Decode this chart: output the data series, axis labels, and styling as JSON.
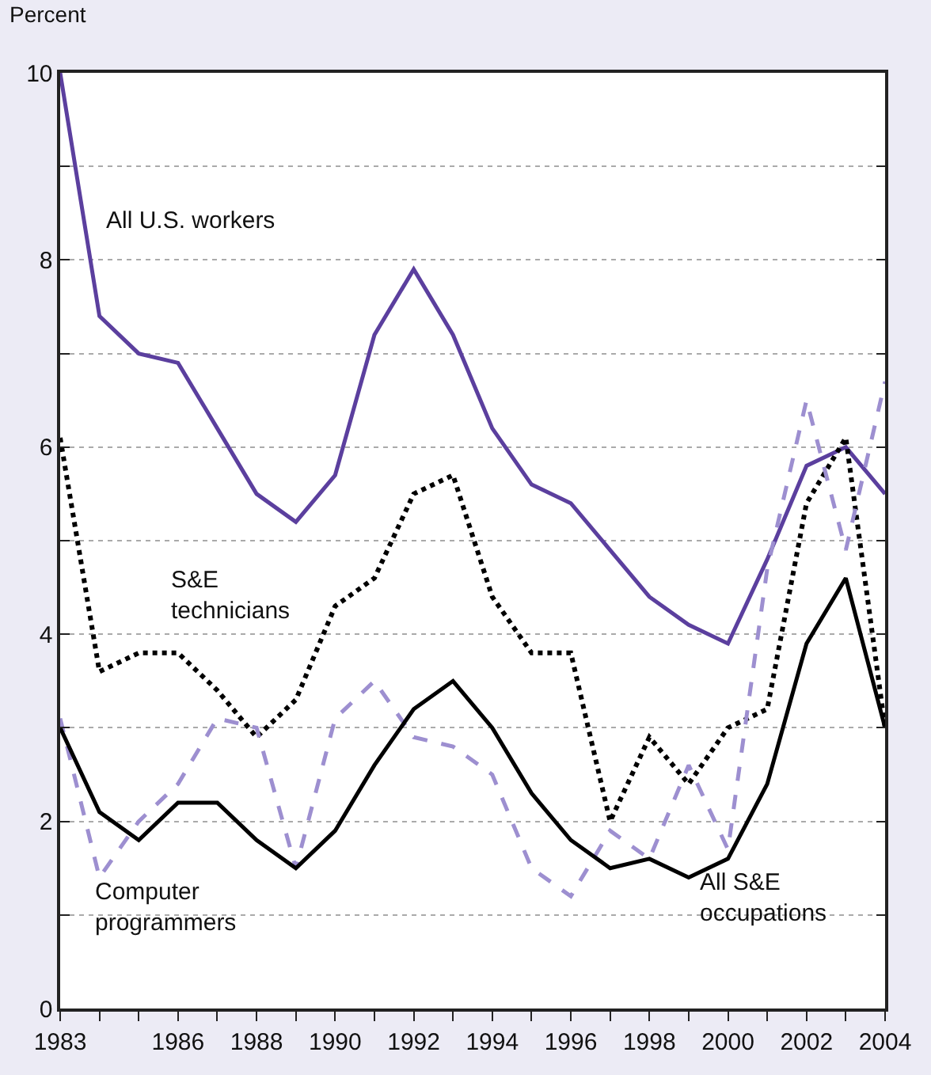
{
  "chart_data": {
    "type": "line",
    "ylabel": "Percent",
    "x": [
      1983,
      1984,
      1985,
      1986,
      1987,
      1988,
      1989,
      1990,
      1991,
      1992,
      1993,
      1994,
      1995,
      1996,
      1997,
      1998,
      1999,
      2000,
      2001,
      2002,
      2003,
      2004
    ],
    "series": [
      {
        "name": "All U.S. workers",
        "color": "#5b3f9e",
        "line_style": "solid",
        "values": [
          10,
          7.4,
          7.0,
          6.9,
          6.2,
          5.5,
          5.2,
          5.7,
          7.2,
          7.9,
          7.2,
          6.2,
          5.6,
          5.4,
          4.9,
          4.4,
          4.1,
          3.9,
          4.8,
          5.8,
          6.0,
          5.5
        ]
      },
      {
        "name": "S&E technicians",
        "color": "#000000",
        "line_style": "dotted",
        "values": [
          6.1,
          3.6,
          3.8,
          3.8,
          3.4,
          2.9,
          3.3,
          4.3,
          4.6,
          5.5,
          5.7,
          4.4,
          3.8,
          3.8,
          2.0,
          2.9,
          2.4,
          3.0,
          3.2,
          5.4,
          6.1,
          3.0
        ]
      },
      {
        "name": "Computer programmers",
        "color": "#9d8fd0",
        "line_style": "dashed",
        "values": [
          3.1,
          1.4,
          2.0,
          2.4,
          3.1,
          3.0,
          1.5,
          3.1,
          3.5,
          2.9,
          2.8,
          2.5,
          1.5,
          1.2,
          1.9,
          1.6,
          2.6,
          1.7,
          4.7,
          6.5,
          4.9,
          6.7
        ]
      },
      {
        "name": "All S&E occupations",
        "color": "#000000",
        "line_style": "solid",
        "values": [
          3.0,
          2.1,
          1.8,
          2.2,
          2.2,
          1.8,
          1.5,
          1.9,
          2.6,
          3.2,
          3.5,
          3.0,
          2.3,
          1.8,
          1.5,
          1.6,
          1.4,
          1.6,
          2.4,
          3.9,
          4.6,
          3.0
        ]
      }
    ],
    "xlim": [
      1983,
      2004
    ],
    "xticks": [
      1983,
      {
        "value": 1984,
        "label": null
      },
      {
        "value": 1985,
        "label": null
      },
      1986,
      {
        "value": 1987,
        "label": null
      },
      1988,
      {
        "value": 1989,
        "label": null
      },
      1990,
      {
        "value": 1991,
        "label": null
      },
      1992,
      {
        "value": 1993,
        "label": null
      },
      1994,
      {
        "value": 1995,
        "label": null
      },
      1996,
      {
        "value": 1997,
        "label": null
      },
      1998,
      {
        "value": 1999,
        "label": null
      },
      2000,
      {
        "value": 2001,
        "label": null
      },
      2002,
      {
        "value": 2003,
        "label": null
      },
      2004
    ],
    "ylim": [
      0,
      10
    ],
    "yticks": [
      0,
      {
        "value": 1,
        "label": null
      },
      2,
      {
        "value": 3,
        "label": null
      },
      4,
      {
        "value": 5,
        "label": null
      },
      6,
      {
        "value": 7,
        "label": null
      },
      8,
      {
        "value": 9,
        "label": null
      },
      10
    ],
    "grid": "y",
    "legend": false,
    "marker": "none"
  }
}
